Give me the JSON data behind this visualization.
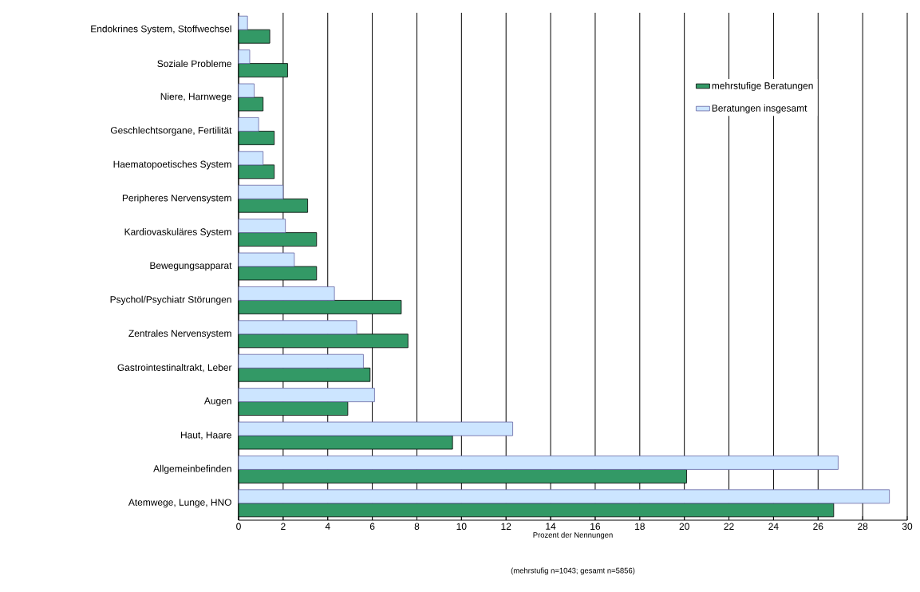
{
  "chart_data": {
    "type": "bar",
    "orientation": "horizontal",
    "xlabel": "Prozent der Nennungen",
    "annotations": [
      "(mehrstufig n=1043; gesamt n=5856)"
    ],
    "categories": [
      "Endokrines System, Stoffwechsel",
      "Soziale Probleme",
      "Niere, Harnwege",
      "Geschlechtsorgane, Fertilität",
      "Haematopoetisches System",
      "Peripheres Nervensystem",
      "Kardiovaskuläres System",
      "Bewegungsapparat",
      "Psychol/Psychiatr Störungen",
      "Zentrales Nervensystem",
      "Gastrointestinaltrakt, Leber",
      "Augen",
      "Haut, Haare",
      "Allgemeinbefinden",
      "Atemwege, Lunge, HNO"
    ],
    "series": [
      {
        "name": "mehrstufige Beratungen",
        "color": "#339966",
        "values": [
          1.4,
          2.2,
          1.1,
          1.6,
          1.6,
          3.1,
          3.5,
          3.5,
          7.3,
          7.6,
          5.9,
          4.9,
          9.6,
          20.1,
          26.7
        ]
      },
      {
        "name": "Beratungen insgesamt",
        "color": "#cce5ff",
        "values": [
          0.4,
          0.5,
          0.7,
          0.9,
          1.1,
          2.0,
          2.1,
          2.5,
          4.3,
          5.3,
          5.6,
          6.1,
          12.3,
          26.9,
          29.2
        ]
      }
    ],
    "xlim": [
      0,
      30
    ],
    "xticks": [
      0,
      2,
      4,
      6,
      8,
      10,
      12,
      14,
      16,
      18,
      20,
      22,
      24,
      26,
      28,
      30
    ],
    "grid": "x",
    "legend": "top right"
  }
}
